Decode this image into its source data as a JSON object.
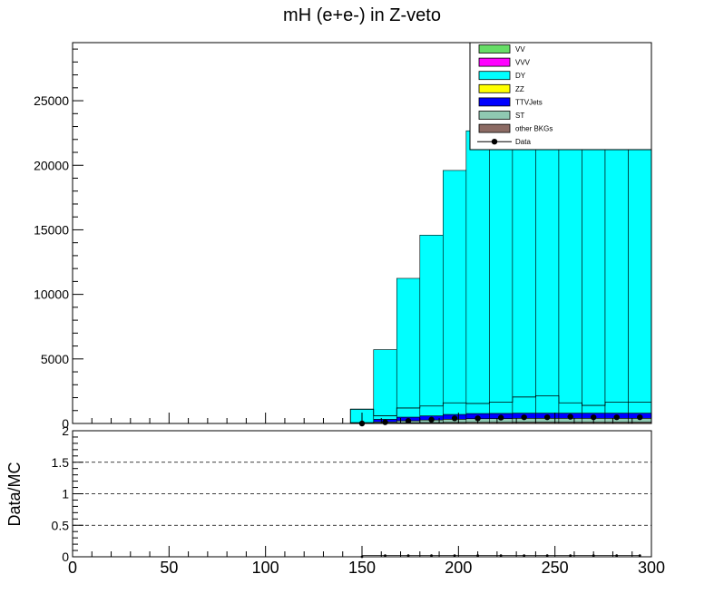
{
  "title": "mH (e+e-) in Z-veto",
  "chart_data": [
    {
      "type": "bar",
      "stacked": true,
      "bin_width": 12,
      "x": [
        150,
        162,
        174,
        186,
        198,
        210,
        222,
        234,
        246,
        258,
        270,
        282,
        294
      ],
      "series": [
        {
          "name": "other BKGs",
          "color": "#8c6b64",
          "values": [
            20,
            40,
            60,
            70,
            80,
            90,
            90,
            100,
            100,
            100,
            100,
            100,
            100
          ]
        },
        {
          "name": "ST",
          "color": "#8fc9b2",
          "values": [
            30,
            80,
            150,
            200,
            250,
            280,
            290,
            300,
            300,
            300,
            300,
            300,
            300
          ]
        },
        {
          "name": "TTVJets",
          "color": "#0000ff",
          "values": [
            20,
            200,
            280,
            320,
            370,
            400,
            400,
            400,
            400,
            400,
            400,
            400,
            400
          ]
        },
        {
          "name": "ZZ",
          "color": "#ffff00",
          "values": [
            0,
            0,
            0,
            0,
            0,
            0,
            0,
            0,
            0,
            0,
            0,
            0,
            0
          ]
        },
        {
          "name": "DY",
          "color": "#00ffff",
          "values": [
            1050,
            5400,
            10750,
            14000,
            18900,
            21900,
            21200,
            21200,
            21200,
            21200,
            21200,
            21200,
            21200
          ]
        },
        {
          "name": "VVV",
          "color": "#ff00ff",
          "values": [
            0,
            0,
            0,
            0,
            0,
            0,
            0,
            0,
            0,
            0,
            0,
            0,
            0
          ]
        },
        {
          "name": "VV",
          "color": "#66dd66",
          "values": [
            0,
            0,
            0,
            0,
            0,
            0,
            0,
            0,
            0,
            0,
            0,
            0,
            0
          ]
        }
      ],
      "line_overlay": [
        1100,
        600,
        1200,
        1350,
        1600,
        1550,
        1650,
        2050,
        2150,
        1600,
        1400,
        1650,
        1650
      ],
      "data": {
        "name": "Data",
        "values": [
          0,
          100,
          200,
          300,
          400,
          400,
          450,
          480,
          480,
          520,
          480,
          480,
          480
        ]
      },
      "xlim": [
        0,
        300
      ],
      "ylim": [
        0,
        29500
      ],
      "y_ticks": [
        0,
        5000,
        10000,
        15000,
        20000,
        25000
      ],
      "legend_order": [
        "VV",
        "VVV",
        "DY",
        "ZZ",
        "TTVJets",
        "ST",
        "other BKGs",
        "Data"
      ],
      "legend_position": "top-right"
    },
    {
      "type": "scatter",
      "ylabel": "Data/MC",
      "x_ticks": [
        0,
        50,
        100,
        150,
        200,
        250,
        300
      ],
      "y_ticks": [
        0,
        0.5,
        1,
        1.5,
        2
      ],
      "ylim": [
        0,
        2
      ],
      "xlim": [
        0,
        300
      ],
      "dashed_lines": [
        0.5,
        1,
        1.5
      ],
      "ratio_values": [
        0,
        0.02,
        0.02,
        0.02,
        0.02,
        0.02,
        0.02,
        0.02,
        0.02,
        0.02,
        0.02,
        0.02,
        0.02
      ]
    }
  ]
}
